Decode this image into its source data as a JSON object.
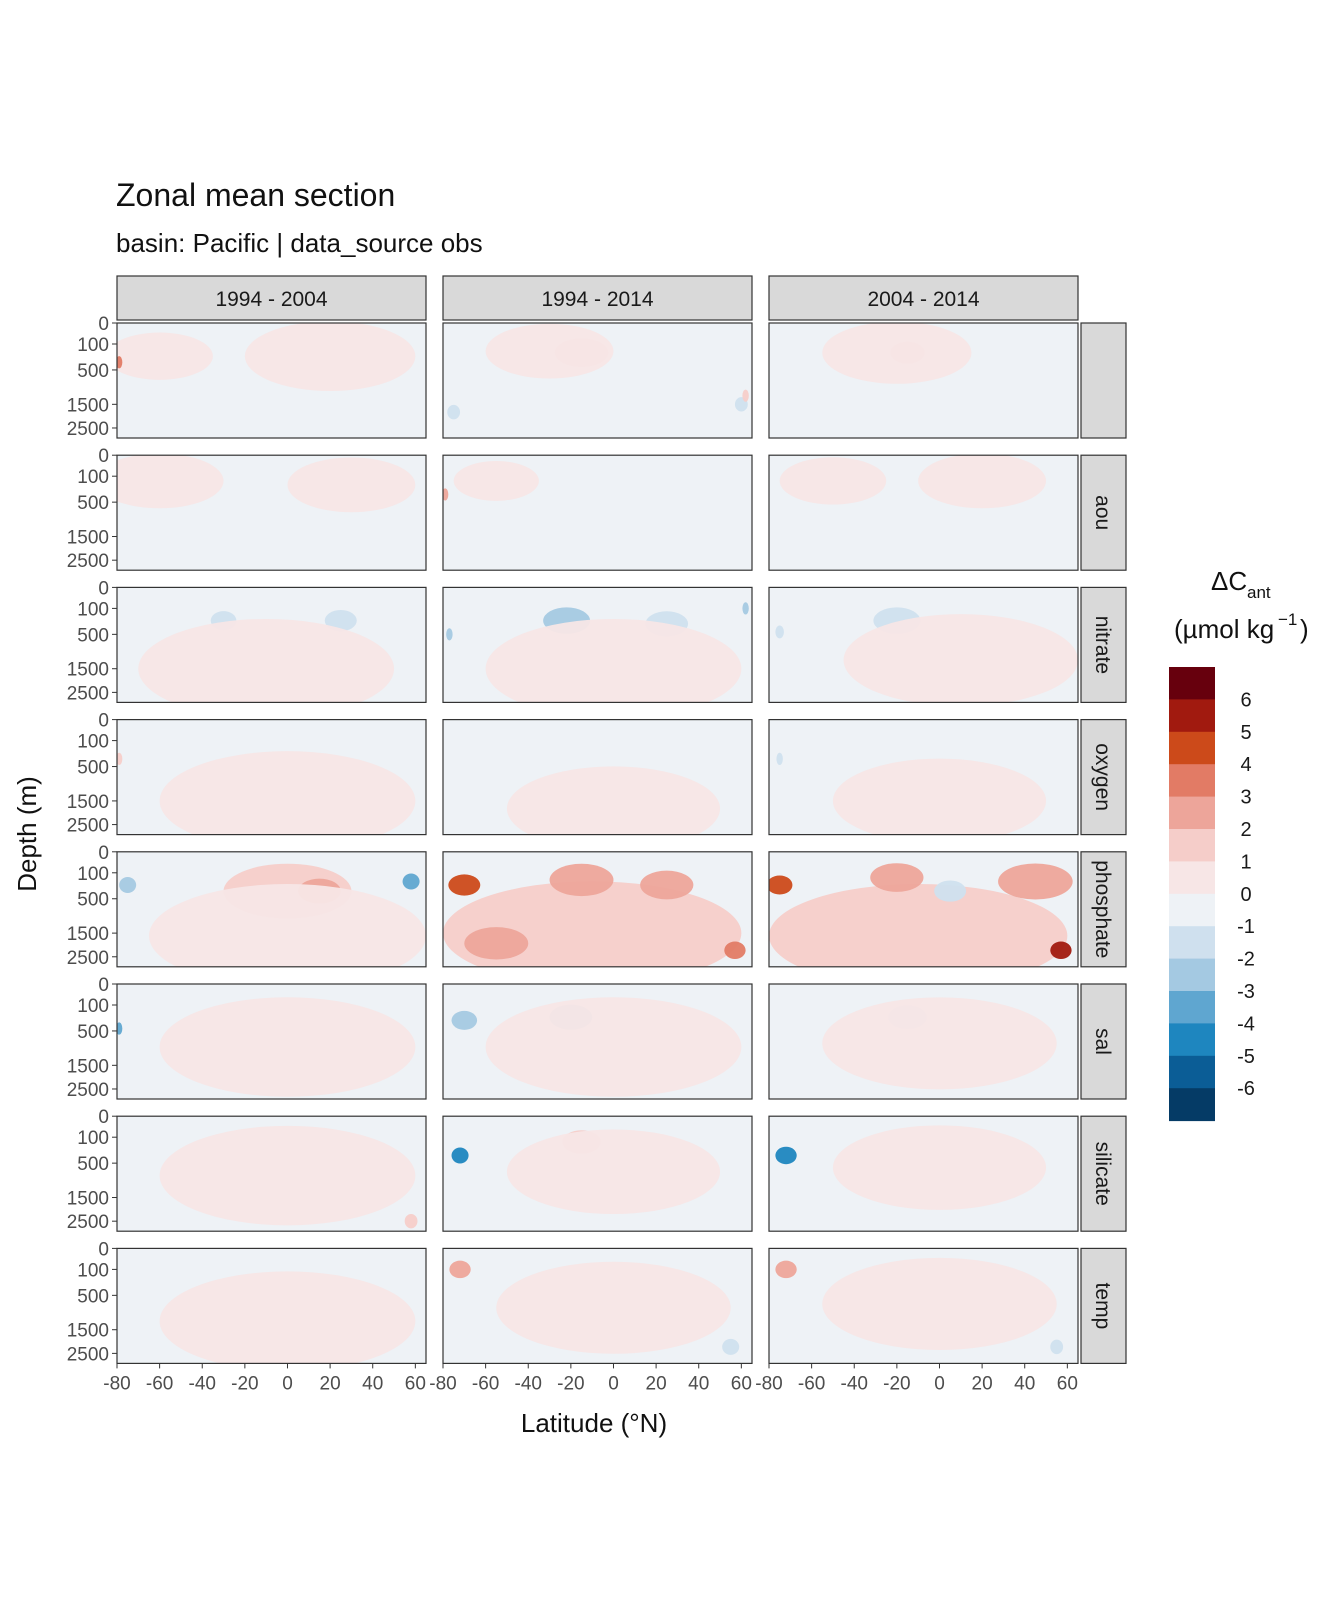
{
  "chart_data": {
    "type": "heatmap",
    "title": "Zonal mean section",
    "subtitle": "basin: Pacific | data_source obs",
    "xlabel": "Latitude (°N)",
    "ylabel": "Depth (m)",
    "x_ticks": [
      -80,
      -60,
      -40,
      -20,
      0,
      20,
      40,
      60
    ],
    "x_tick_labels": [
      "-80",
      "-60",
      "-40",
      "-20",
      "0",
      "20",
      "40",
      "60"
    ],
    "xlim": [
      -80,
      65
    ],
    "y_ticks": [
      0,
      100,
      500,
      1500,
      2500
    ],
    "y_tick_labels": [
      "0",
      "100",
      "500",
      "1500",
      "2500"
    ],
    "ylim": [
      0,
      3000
    ],
    "y_reversed": true,
    "columns": [
      "1994 - 2004",
      "1994 - 2014",
      "2004 - 2014"
    ],
    "rows": [
      "",
      "aou",
      "nitrate",
      "oxygen",
      "phosphate",
      "sal",
      "silicate",
      "temp"
    ],
    "legend": {
      "title_main": "ΔC",
      "title_sub": "ant",
      "unit_text": "(µmol kg",
      "unit_sup": "−1",
      "unit_close": ")",
      "labels": [
        "6",
        "5",
        "4",
        "3",
        "2",
        "1",
        "0",
        "-1",
        "-2",
        "-3",
        "-4",
        "-5",
        "-6"
      ],
      "colors": [
        "#67000d",
        "#a11a0f",
        "#cc4a1a",
        "#e27b65",
        "#eda59a",
        "#f5cdc9",
        "#f7e6e6",
        "#eef2f6",
        "#cfe0ee",
        "#a4c9e2",
        "#5fa6d0",
        "#1e86bf",
        "#0b5d96",
        "#053b66"
      ],
      "position": "right"
    },
    "background_fill": "#eef2f6",
    "features": [
      {
        "row": 0,
        "col": 0,
        "lat": -60,
        "depth": 250,
        "dlat": 50,
        "level": 0.4
      },
      {
        "row": 0,
        "col": 0,
        "lat": 20,
        "depth": 250,
        "dlat": 80,
        "level": 0.4
      },
      {
        "row": 0,
        "col": 0,
        "lat": -79,
        "depth": 350,
        "dlat": 3,
        "level": 4
      },
      {
        "row": 0,
        "col": 1,
        "lat": -15,
        "depth": 200,
        "dlat": 25,
        "level": 2
      },
      {
        "row": 0,
        "col": 1,
        "lat": -30,
        "depth": 180,
        "dlat": 60,
        "level": 0.4
      },
      {
        "row": 0,
        "col": 1,
        "lat": -75,
        "depth": 1800,
        "dlat": 6,
        "level": -1.5
      },
      {
        "row": 0,
        "col": 1,
        "lat": 60,
        "depth": 1500,
        "dlat": 6,
        "level": -1.5
      },
      {
        "row": 0,
        "col": 1,
        "lat": 62,
        "depth": 1200,
        "dlat": 3,
        "level": 2
      },
      {
        "row": 0,
        "col": 2,
        "lat": -15,
        "depth": 200,
        "dlat": 16,
        "level": 2
      },
      {
        "row": 0,
        "col": 2,
        "lat": -20,
        "depth": 200,
        "dlat": 70,
        "level": 0.4
      },
      {
        "row": 1,
        "col": 0,
        "lat": -60,
        "depth": 150,
        "dlat": 60,
        "level": 0.4
      },
      {
        "row": 1,
        "col": 0,
        "lat": 30,
        "depth": 200,
        "dlat": 60,
        "level": 0.4
      },
      {
        "row": 1,
        "col": 1,
        "lat": -79,
        "depth": 350,
        "dlat": 3,
        "level": 3
      },
      {
        "row": 1,
        "col": 1,
        "lat": -55,
        "depth": 150,
        "dlat": 40,
        "level": 0.4
      },
      {
        "row": 1,
        "col": 2,
        "lat": -50,
        "depth": 150,
        "dlat": 50,
        "level": 0.4
      },
      {
        "row": 1,
        "col": 2,
        "lat": 20,
        "depth": 150,
        "dlat": 60,
        "level": 0.4
      },
      {
        "row": 2,
        "col": 0,
        "lat": -30,
        "depth": 250,
        "dlat": 12,
        "level": -1.5
      },
      {
        "row": 2,
        "col": 0,
        "lat": 25,
        "depth": 250,
        "dlat": 15,
        "level": -1.5
      },
      {
        "row": 2,
        "col": 0,
        "lat": -10,
        "depth": 1500,
        "dlat": 120,
        "level": 0.4
      },
      {
        "row": 2,
        "col": 1,
        "lat": -22,
        "depth": 250,
        "dlat": 22,
        "level": -2.5
      },
      {
        "row": 2,
        "col": 1,
        "lat": 25,
        "depth": 300,
        "dlat": 20,
        "level": -1.5
      },
      {
        "row": 2,
        "col": 1,
        "lat": -77,
        "depth": 500,
        "dlat": 3,
        "level": -2.5
      },
      {
        "row": 2,
        "col": 1,
        "lat": 62,
        "depth": 100,
        "dlat": 3,
        "level": -2.5
      },
      {
        "row": 2,
        "col": 1,
        "lat": 0,
        "depth": 1500,
        "dlat": 120,
        "level": 0.4
      },
      {
        "row": 2,
        "col": 2,
        "lat": -20,
        "depth": 250,
        "dlat": 22,
        "level": -1.5
      },
      {
        "row": 2,
        "col": 2,
        "lat": -75,
        "depth": 450,
        "dlat": 4,
        "level": -1.5
      },
      {
        "row": 2,
        "col": 2,
        "lat": 10,
        "depth": 1200,
        "dlat": 110,
        "level": 0.4
      },
      {
        "row": 3,
        "col": 0,
        "lat": -79,
        "depth": 350,
        "dlat": 3,
        "level": 2
      },
      {
        "row": 3,
        "col": 0,
        "lat": 0,
        "depth": 1500,
        "dlat": 120,
        "level": 0.4
      },
      {
        "row": 3,
        "col": 1,
        "lat": 0,
        "depth": 1800,
        "dlat": 100,
        "level": 0.3
      },
      {
        "row": 3,
        "col": 2,
        "lat": -75,
        "depth": 350,
        "dlat": 3,
        "level": -1.5
      },
      {
        "row": 3,
        "col": 2,
        "lat": 0,
        "depth": 1500,
        "dlat": 100,
        "level": 0.3
      },
      {
        "row": 4,
        "col": 0,
        "lat": 0,
        "depth": 350,
        "dlat": 60,
        "level": 1.5
      },
      {
        "row": 4,
        "col": 0,
        "lat": 15,
        "depth": 350,
        "dlat": 20,
        "level": 2.5
      },
      {
        "row": 4,
        "col": 0,
        "lat": -75,
        "depth": 250,
        "dlat": 8,
        "level": -2
      },
      {
        "row": 4,
        "col": 0,
        "lat": 58,
        "depth": 200,
        "dlat": 8,
        "level": -3
      },
      {
        "row": 4,
        "col": 0,
        "lat": 0,
        "depth": 1600,
        "dlat": 130,
        "level": 0.6
      },
      {
        "row": 4,
        "col": 1,
        "lat": -10,
        "depth": 1500,
        "dlat": 140,
        "level": 1.4
      },
      {
        "row": 4,
        "col": 1,
        "lat": -70,
        "depth": 250,
        "dlat": 15,
        "level": 5
      },
      {
        "row": 4,
        "col": 1,
        "lat": -15,
        "depth": 180,
        "dlat": 30,
        "level": 3
      },
      {
        "row": 4,
        "col": 1,
        "lat": 25,
        "depth": 250,
        "dlat": 25,
        "level": 3
      },
      {
        "row": 4,
        "col": 1,
        "lat": -55,
        "depth": 1900,
        "dlat": 30,
        "level": 2.5
      },
      {
        "row": 4,
        "col": 1,
        "lat": 57,
        "depth": 2200,
        "dlat": 10,
        "level": 4
      },
      {
        "row": 4,
        "col": 2,
        "lat": -10,
        "depth": 1600,
        "dlat": 140,
        "level": 1.4
      },
      {
        "row": 4,
        "col": 2,
        "lat": -75,
        "depth": 250,
        "dlat": 12,
        "level": 5
      },
      {
        "row": 4,
        "col": 2,
        "lat": 45,
        "depth": 200,
        "dlat": 35,
        "level": 2.5
      },
      {
        "row": 4,
        "col": 2,
        "lat": 5,
        "depth": 350,
        "dlat": 15,
        "level": -1.5
      },
      {
        "row": 4,
        "col": 2,
        "lat": -20,
        "depth": 150,
        "dlat": 25,
        "level": 2.5
      },
      {
        "row": 4,
        "col": 2,
        "lat": 57,
        "depth": 2200,
        "dlat": 10,
        "level": 5.5
      },
      {
        "row": 5,
        "col": 0,
        "lat": -79,
        "depth": 450,
        "dlat": 3,
        "level": -3
      },
      {
        "row": 5,
        "col": 0,
        "lat": 0,
        "depth": 900,
        "dlat": 120,
        "level": 0.4
      },
      {
        "row": 5,
        "col": 1,
        "lat": -20,
        "depth": 250,
        "dlat": 20,
        "level": -2.5
      },
      {
        "row": 5,
        "col": 1,
        "lat": -70,
        "depth": 300,
        "dlat": 12,
        "level": -2.5
      },
      {
        "row": 5,
        "col": 1,
        "lat": 0,
        "depth": 900,
        "dlat": 120,
        "level": 0.4
      },
      {
        "row": 5,
        "col": 2,
        "lat": -15,
        "depth": 250,
        "dlat": 18,
        "level": -1.5
      },
      {
        "row": 5,
        "col": 2,
        "lat": 0,
        "depth": 800,
        "dlat": 110,
        "level": 0.4
      },
      {
        "row": 6,
        "col": 0,
        "lat": 0,
        "depth": 800,
        "dlat": 120,
        "level": 0.4
      },
      {
        "row": 6,
        "col": 0,
        "lat": 58,
        "depth": 2500,
        "dlat": 6,
        "level": 1.5
      },
      {
        "row": 6,
        "col": 1,
        "lat": -72,
        "depth": 350,
        "dlat": 8,
        "level": -4.5
      },
      {
        "row": 6,
        "col": 1,
        "lat": -15,
        "depth": 150,
        "dlat": 18,
        "level": 1.5
      },
      {
        "row": 6,
        "col": 1,
        "lat": 0,
        "depth": 700,
        "dlat": 100,
        "level": 0.4
      },
      {
        "row": 6,
        "col": 2,
        "lat": -72,
        "depth": 350,
        "dlat": 10,
        "level": -4
      },
      {
        "row": 6,
        "col": 2,
        "lat": 0,
        "depth": 600,
        "dlat": 100,
        "level": 0.4
      },
      {
        "row": 7,
        "col": 0,
        "lat": 0,
        "depth": 1200,
        "dlat": 120,
        "level": 0.4
      },
      {
        "row": 7,
        "col": 1,
        "lat": -72,
        "depth": 100,
        "dlat": 10,
        "level": 3
      },
      {
        "row": 7,
        "col": 1,
        "lat": 0,
        "depth": 800,
        "dlat": 110,
        "level": 0.4
      },
      {
        "row": 7,
        "col": 1,
        "lat": 55,
        "depth": 2200,
        "dlat": 8,
        "level": -1.5
      },
      {
        "row": 7,
        "col": 2,
        "lat": -72,
        "depth": 100,
        "dlat": 10,
        "level": 3
      },
      {
        "row": 7,
        "col": 2,
        "lat": 0,
        "depth": 700,
        "dlat": 110,
        "level": 0.4
      },
      {
        "row": 7,
        "col": 2,
        "lat": 55,
        "depth": 2200,
        "dlat": 6,
        "level": -1.5
      }
    ]
  }
}
